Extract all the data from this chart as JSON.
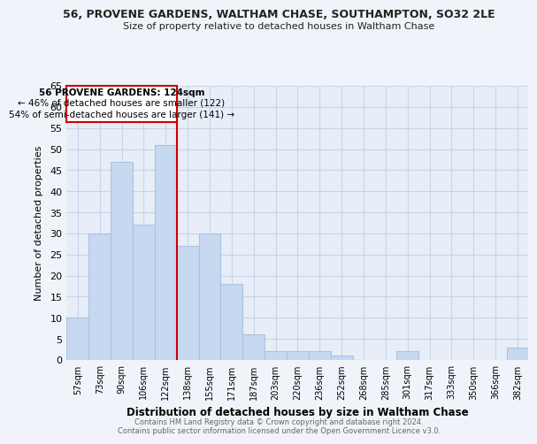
{
  "title1": "56, PROVENE GARDENS, WALTHAM CHASE, SOUTHAMPTON, SO32 2LE",
  "title2": "Size of property relative to detached houses in Waltham Chase",
  "xlabel": "Distribution of detached houses by size in Waltham Chase",
  "ylabel": "Number of detached properties",
  "bar_labels": [
    "57sqm",
    "73sqm",
    "90sqm",
    "106sqm",
    "122sqm",
    "138sqm",
    "155sqm",
    "171sqm",
    "187sqm",
    "203sqm",
    "220sqm",
    "236sqm",
    "252sqm",
    "268sqm",
    "285sqm",
    "301sqm",
    "317sqm",
    "333sqm",
    "350sqm",
    "366sqm",
    "382sqm"
  ],
  "bar_values": [
    10,
    30,
    47,
    32,
    51,
    27,
    30,
    18,
    6,
    2,
    2,
    2,
    1,
    0,
    0,
    2,
    0,
    0,
    0,
    0,
    3
  ],
  "bar_color": "#c6d9f0",
  "bar_edge_color": "#a8c4e0",
  "vline_bar_index": 4,
  "vline_color": "#cc0000",
  "annotation_title": "56 PROVENE GARDENS: 124sqm",
  "annotation_line1": "← 46% of detached houses are smaller (122)",
  "annotation_line2": "54% of semi-detached houses are larger (141) →",
  "annotation_box_edge": "#cc0000",
  "ylim": [
    0,
    65
  ],
  "yticks": [
    0,
    5,
    10,
    15,
    20,
    25,
    30,
    35,
    40,
    45,
    50,
    55,
    60,
    65
  ],
  "footer1": "Contains HM Land Registry data © Crown copyright and database right 2024.",
  "footer2": "Contains public sector information licensed under the Open Government Licence v3.0.",
  "bg_color": "#f0f4fa",
  "plot_bg_color": "#e8eef8",
  "grid_color": "#c8d4e8"
}
